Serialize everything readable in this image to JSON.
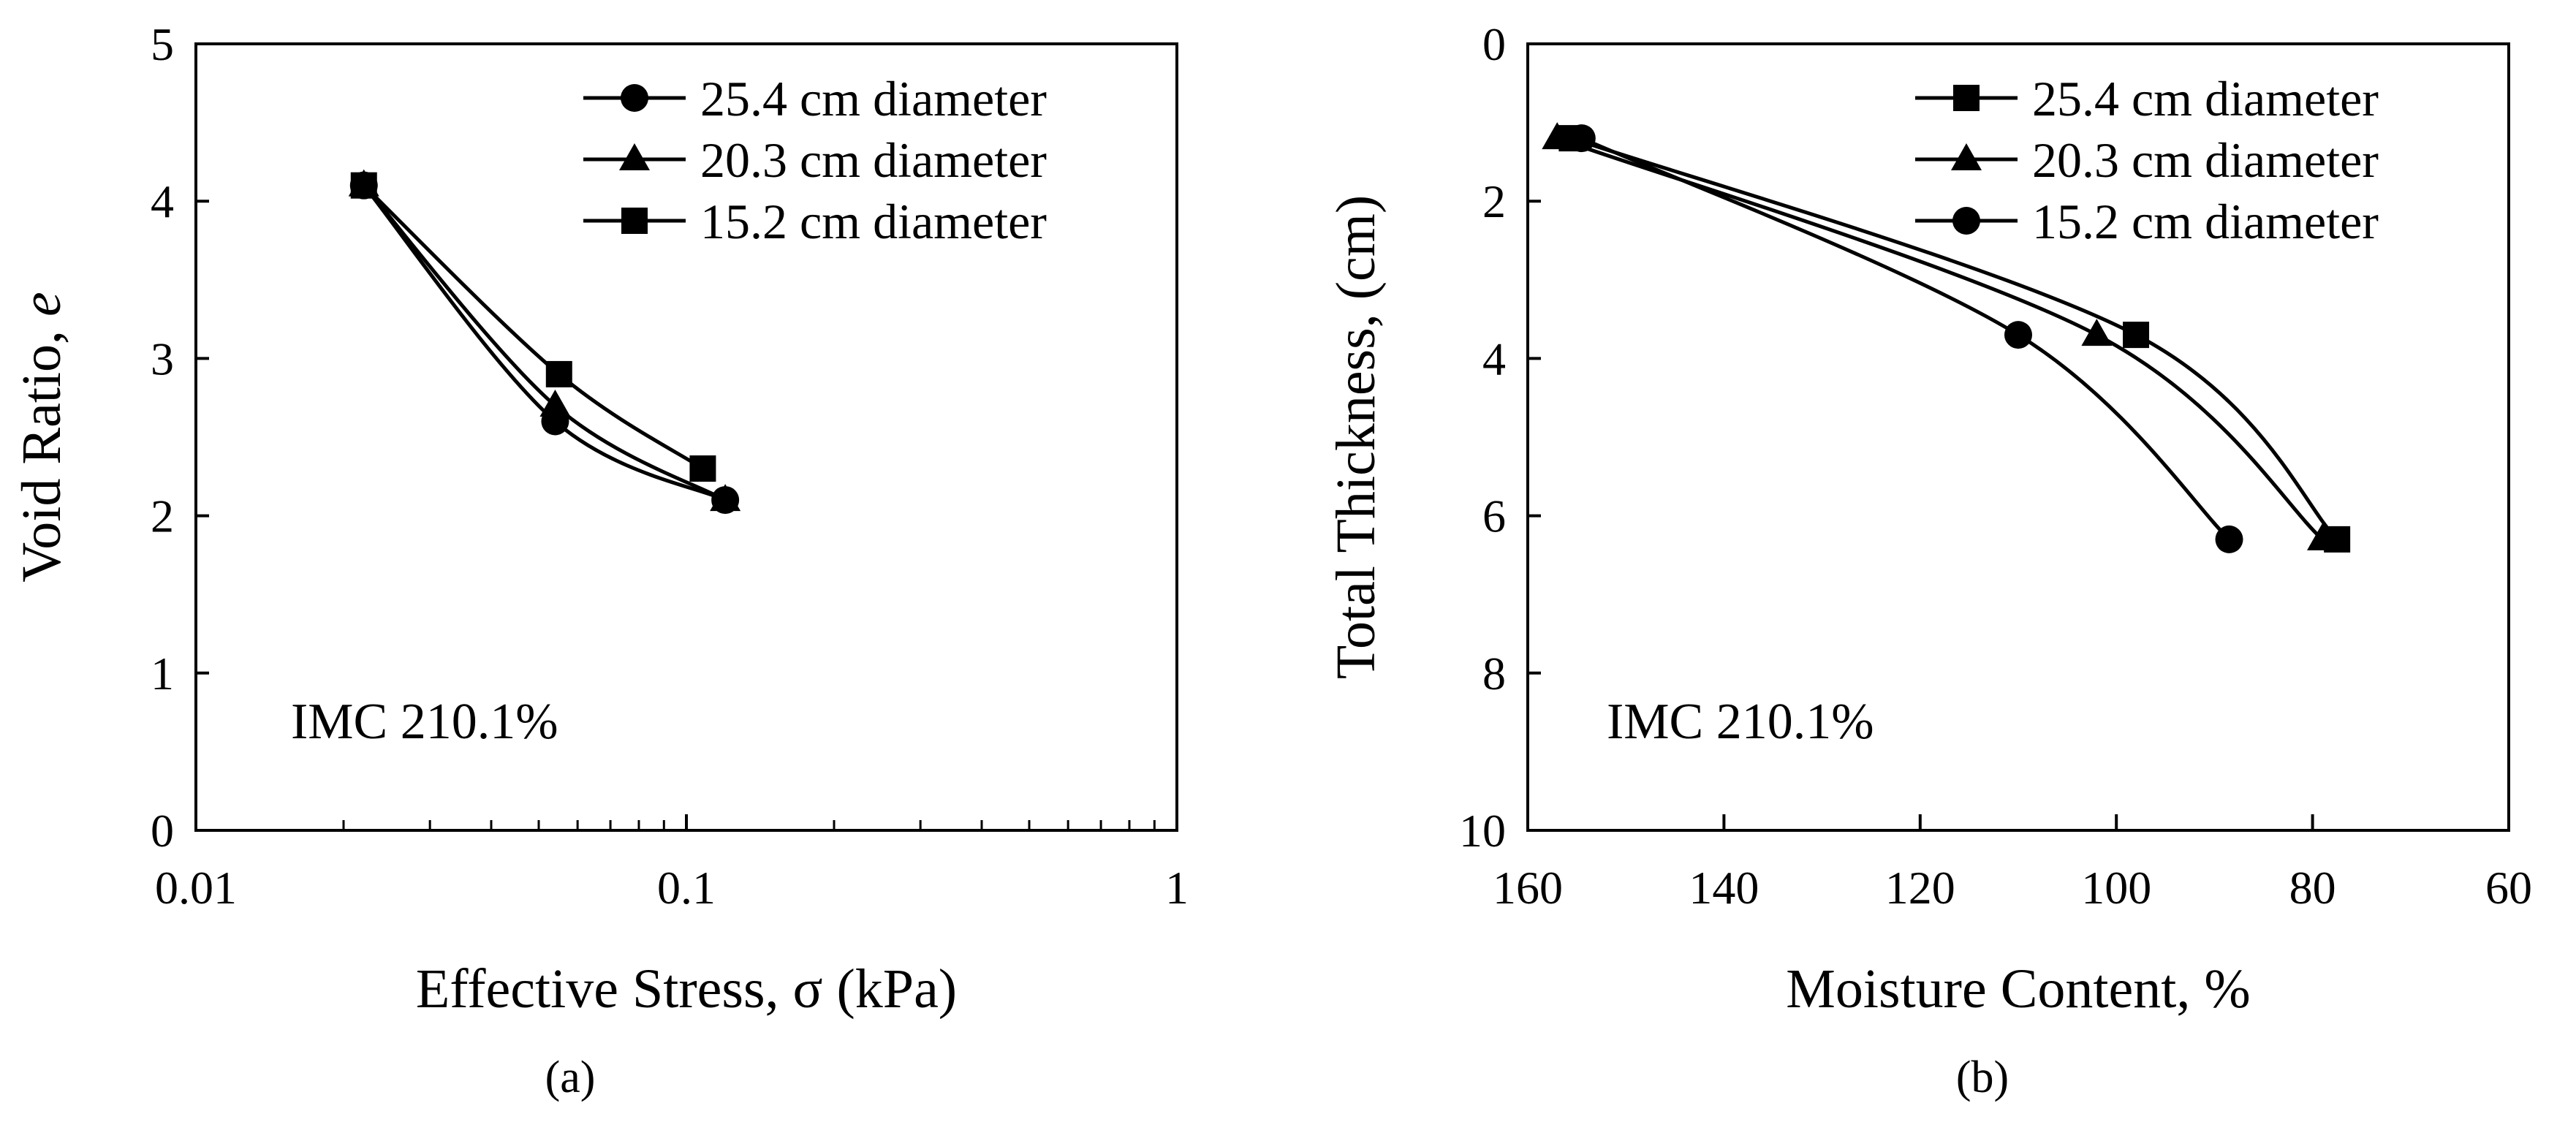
{
  "chart_data": [
    {
      "type": "line",
      "panel_label": "(a)",
      "xlabel": "Effective Stress, σ (kPa)",
      "ylabel": "Void Ratio, e",
      "ylabel_main": "Void Ratio, ",
      "ylabel_italic": "e",
      "xscale": "log",
      "xlim": [
        0.01,
        1
      ],
      "ylim": [
        0,
        5
      ],
      "x_ticks": [
        0.01,
        0.1,
        1
      ],
      "x_tick_labels": [
        "0.01",
        "0.1",
        "1"
      ],
      "y_ticks": [
        0,
        1,
        2,
        3,
        4,
        5
      ],
      "y_tick_labels": [
        "0",
        "1",
        "2",
        "3",
        "4",
        "5"
      ],
      "annotation": "IMC 210.1%",
      "legend_position": "top-right",
      "series": [
        {
          "name": "25.4 cm diameter",
          "marker": "circle",
          "x": [
            0.022,
            0.054,
            0.12
          ],
          "y": [
            4.1,
            2.6,
            2.1
          ]
        },
        {
          "name": "20.3 cm diameter",
          "marker": "triangle",
          "x": [
            0.022,
            0.054,
            0.12
          ],
          "y": [
            4.1,
            2.7,
            2.1
          ]
        },
        {
          "name": "15.2 cm diameter",
          "marker": "square",
          "x": [
            0.022,
            0.055,
            0.108
          ],
          "y": [
            4.1,
            2.9,
            2.3
          ]
        }
      ]
    },
    {
      "type": "line",
      "panel_label": "(b)",
      "xlabel": "Moisture Content, %",
      "ylabel": "Total Thickness, (cm)",
      "xlim": [
        160,
        60
      ],
      "ylim": [
        0,
        10
      ],
      "x_reversed": true,
      "y_reversed": true,
      "x_ticks": [
        160,
        140,
        120,
        100,
        80,
        60
      ],
      "x_tick_labels": [
        "160",
        "140",
        "120",
        "100",
        "80",
        "60"
      ],
      "y_ticks": [
        0,
        2,
        4,
        6,
        8,
        10
      ],
      "y_tick_labels": [
        "0",
        "2",
        "4",
        "6",
        "8",
        "10"
      ],
      "annotation": "IMC 210.1%",
      "legend_position": "top-right",
      "series": [
        {
          "name": "25.4 cm diameter",
          "marker": "square",
          "x": [
            155.5,
            98,
            77.5
          ],
          "y": [
            1.2,
            3.7,
            6.3
          ]
        },
        {
          "name": "20.3 cm diameter",
          "marker": "triangle",
          "x": [
            157,
            102,
            79
          ],
          "y": [
            1.2,
            3.7,
            6.3
          ]
        },
        {
          "name": "15.2 cm diameter",
          "marker": "circle",
          "x": [
            154.5,
            110,
            88.5
          ],
          "y": [
            1.2,
            3.7,
            6.3
          ]
        }
      ]
    }
  ]
}
